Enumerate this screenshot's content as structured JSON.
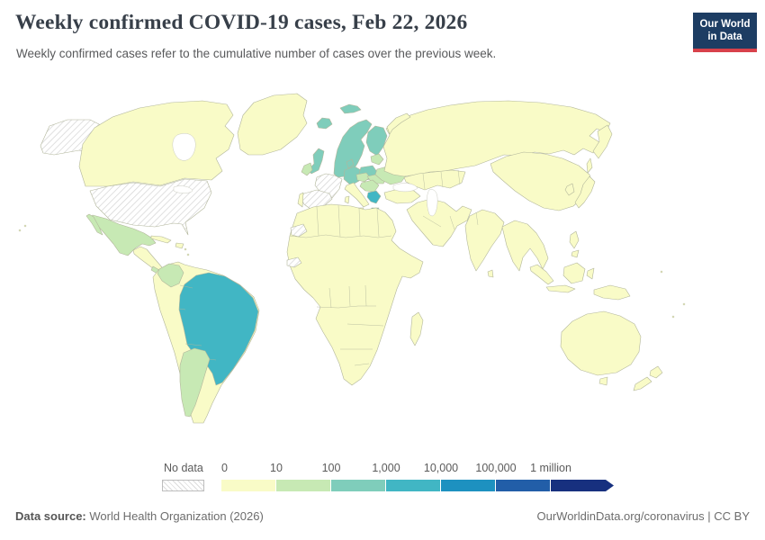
{
  "header": {
    "title": "Weekly confirmed COVID-19 cases, Feb 22, 2026",
    "subtitle": "Weekly confirmed cases refer to the cumulative number of cases over the previous week.",
    "logo": {
      "line1": "Our World",
      "line2": "in Data",
      "bg": "#1d3d63",
      "accent": "#d8414b"
    }
  },
  "legend": {
    "no_data_label": "No data",
    "ticks": [
      "0",
      "10",
      "100",
      "1,000",
      "10,000",
      "100,000",
      "1 million"
    ],
    "colors": [
      "#f9fbc7",
      "#c7e9b4",
      "#7fcdbb",
      "#41b6c4",
      "#1d91c0",
      "#225ea8",
      "#17307f"
    ]
  },
  "map": {
    "ocean": "#ffffff",
    "border_color": "#b2b69b",
    "nodata_stroke": "#c6c6c6",
    "palette": {
      "c0": "#f9fbc7",
      "c1": "#c7e9b4",
      "c2": "#7fcdbb",
      "c3": "#41b6c4",
      "c4": "#1d91c0",
      "c5": "#225ea8",
      "c6": "#17307f"
    },
    "regions": [
      {
        "id": "greenland",
        "color": "c0"
      },
      {
        "id": "canada",
        "color": "c0"
      },
      {
        "id": "alaska",
        "color": "nodata"
      },
      {
        "id": "usa",
        "color": "nodata"
      },
      {
        "id": "mexico",
        "color": "c1"
      },
      {
        "id": "baja",
        "color": "c1"
      },
      {
        "id": "central-america",
        "color": "c0"
      },
      {
        "id": "costa-panama",
        "color": "c1"
      },
      {
        "id": "cuba",
        "color": "c0"
      },
      {
        "id": "hispaniola",
        "color": "c0"
      },
      {
        "id": "antilles",
        "color": "c0"
      },
      {
        "id": "south-america",
        "color": "c0"
      },
      {
        "id": "colombia",
        "color": "c1"
      },
      {
        "id": "brazil",
        "color": "c3"
      },
      {
        "id": "argentina",
        "color": "c1"
      },
      {
        "id": "iceland",
        "color": "c2"
      },
      {
        "id": "svalbard",
        "color": "c2"
      },
      {
        "id": "scandinavia",
        "color": "c2"
      },
      {
        "id": "finland",
        "color": "c2"
      },
      {
        "id": "denmark",
        "color": "c2"
      },
      {
        "id": "uk",
        "color": "c2"
      },
      {
        "id": "ireland",
        "color": "c1"
      },
      {
        "id": "france",
        "color": "nodata"
      },
      {
        "id": "spain",
        "color": "nodata"
      },
      {
        "id": "portugal",
        "color": "c0"
      },
      {
        "id": "germany",
        "color": "c2"
      },
      {
        "id": "poland",
        "color": "c2"
      },
      {
        "id": "czech-austria",
        "color": "c1"
      },
      {
        "id": "hungary-romania",
        "color": "c1"
      },
      {
        "id": "balkans",
        "color": "c1"
      },
      {
        "id": "baltics",
        "color": "c1"
      },
      {
        "id": "ukraine",
        "color": "c1"
      },
      {
        "id": "italy",
        "color": "c0"
      },
      {
        "id": "sicily",
        "color": "c0"
      },
      {
        "id": "sardinia",
        "color": "c0"
      },
      {
        "id": "greece",
        "color": "c3"
      },
      {
        "id": "crete",
        "color": "c3"
      },
      {
        "id": "turkey",
        "color": "c0"
      },
      {
        "id": "russia",
        "color": "c0"
      },
      {
        "id": "novaya-zemlya",
        "color": "c0"
      },
      {
        "id": "kamchatka",
        "color": "c0"
      },
      {
        "id": "sakhalin",
        "color": "c0"
      },
      {
        "id": "central-asia",
        "color": "c0"
      },
      {
        "id": "mongolia",
        "color": "c0"
      },
      {
        "id": "china",
        "color": "c0"
      },
      {
        "id": "mideast",
        "color": "c0"
      },
      {
        "id": "africa",
        "color": "c0"
      },
      {
        "id": "western-sahara",
        "color": "nodata"
      },
      {
        "id": "senegal",
        "color": "nodata"
      },
      {
        "id": "madagascar",
        "color": "c0"
      },
      {
        "id": "india",
        "color": "c0"
      },
      {
        "id": "sri-lanka",
        "color": "c0"
      },
      {
        "id": "se-asia",
        "color": "c0"
      },
      {
        "id": "japan",
        "color": "c0"
      },
      {
        "id": "korea",
        "color": "c0"
      },
      {
        "id": "philippines",
        "color": "c0"
      },
      {
        "id": "mindanao",
        "color": "c0"
      },
      {
        "id": "borneo",
        "color": "c0"
      },
      {
        "id": "sumatra",
        "color": "c0"
      },
      {
        "id": "java",
        "color": "c0"
      },
      {
        "id": "sulawesi",
        "color": "c0"
      },
      {
        "id": "png",
        "color": "c0"
      },
      {
        "id": "australia",
        "color": "c0"
      },
      {
        "id": "tasmania",
        "color": "c0"
      },
      {
        "id": "nz-north",
        "color": "c0"
      },
      {
        "id": "nz-south",
        "color": "c0"
      },
      {
        "id": "pacific-islands",
        "color": "c0"
      }
    ]
  },
  "footer": {
    "source_label": "Data source:",
    "source_text": " World Health Organization (2026)",
    "link_text": "OurWorldinData.org/coronavirus",
    "separator": " | ",
    "license_text": "CC BY"
  },
  "chart_data": {
    "type": "choropleth_map",
    "title": "Weekly confirmed COVID-19 cases, Feb 22, 2026",
    "metric": "Weekly confirmed COVID-19 cases",
    "date": "Feb 22, 2026",
    "color_scale": {
      "scheme": "YlGnBu",
      "bin_edges": [
        "0",
        "10",
        "100",
        "1,000",
        "10,000",
        "100,000",
        "1 million"
      ],
      "bins": [
        "0-10",
        "10-100",
        "100-1,000",
        "1,000-10,000",
        "10,000-100,000",
        "100,000-1 million",
        "1 million+"
      ],
      "no_data_style": "diagonal hatching",
      "legend_position": "bottom"
    },
    "values_by_region": {
      "United States (incl. Alaska)": "No data",
      "France": "No data",
      "Spain": "No data",
      "Western Sahara": "No data",
      "Senegal area (West Africa)": "No data",
      "Brazil": "1,000-10,000",
      "Greece": "1,000-10,000",
      "Norway": "100-1,000",
      "Sweden": "100-1,000",
      "Finland": "100-1,000",
      "Iceland": "100-1,000",
      "Svalbard": "100-1,000",
      "Denmark": "100-1,000",
      "United Kingdom": "100-1,000",
      "Germany": "100-1,000",
      "Poland": "100-1,000",
      "Mexico": "10-100",
      "Colombia": "10-100",
      "Argentina": "10-100",
      "Costa Rica / Panama": "10-100",
      "Ireland": "10-100",
      "Ukraine": "10-100",
      "Czechia / Austria": "10-100",
      "Hungary / Romania": "10-100",
      "Balkans": "10-100",
      "Baltic states": "10-100",
      "Most other countries (Canada, Greenland, Russia, China, India, Japan, Africa, Middle East, Australia, New Zealand, Southeast Asia)": "0-10"
    }
  }
}
